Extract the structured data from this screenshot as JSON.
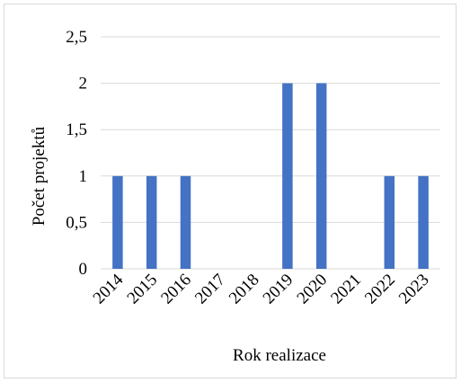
{
  "chart_data": {
    "type": "bar",
    "title": "",
    "xlabel": "Rok realizace",
    "ylabel": "Počet projektů",
    "categories": [
      "2014",
      "2015",
      "2016",
      "2017",
      "2018",
      "2019",
      "2020",
      "2021",
      "2022",
      "2023"
    ],
    "values": [
      1,
      1,
      1,
      0,
      0,
      2,
      2,
      0,
      1,
      1
    ],
    "ylim": [
      0,
      2.5
    ],
    "yticks": [
      "0",
      "0,5",
      "1",
      "1,5",
      "2",
      "2,5"
    ],
    "grid": true,
    "legend": "none",
    "bar_color": "#4472c4",
    "grid_color": "#d9d9d9"
  }
}
